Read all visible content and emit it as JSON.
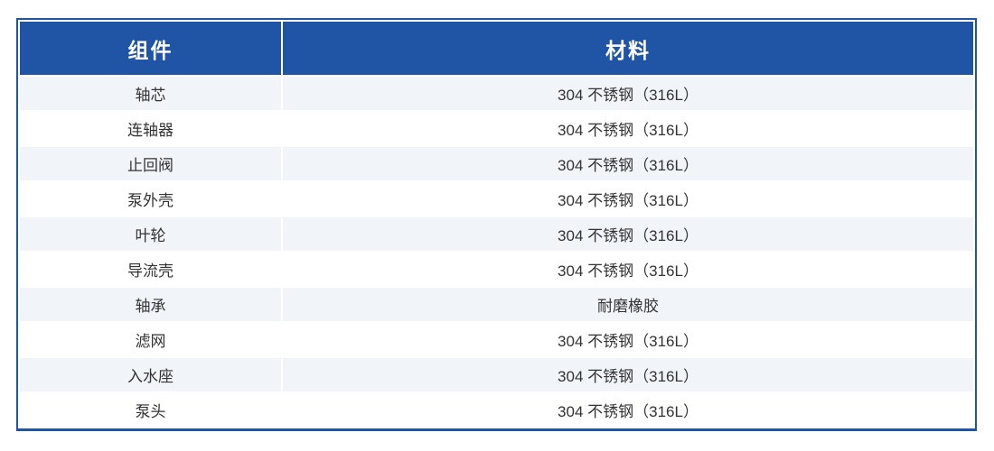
{
  "table": {
    "columns": [
      {
        "label": "组件"
      },
      {
        "label": "材料"
      }
    ],
    "rows": [
      {
        "component": "轴芯",
        "material": "304 不锈钢（316L）"
      },
      {
        "component": "连轴器",
        "material": "304 不锈钢（316L）"
      },
      {
        "component": "止回阀",
        "material": "304 不锈钢（316L）"
      },
      {
        "component": "泵外壳",
        "material": "304 不锈钢（316L）"
      },
      {
        "component": "叶轮",
        "material": "304 不锈钢（316L）"
      },
      {
        "component": "导流壳",
        "material": "304 不锈钢（316L）"
      },
      {
        "component": "轴承",
        "material": "耐磨橡胶"
      },
      {
        "component": "滤网",
        "material": "304 不锈钢（316L）"
      },
      {
        "component": "入水座",
        "material": "304 不锈钢（316L）"
      },
      {
        "component": "泵头",
        "material": "304 不锈钢（316L）"
      }
    ],
    "colors": {
      "header_bg": "#2054a4",
      "border": "#2054a4",
      "row_alt_bg": "#f1f5fa",
      "row_bg": "#ffffff",
      "header_text": "#ffffff",
      "cell_text": "#333333"
    }
  }
}
